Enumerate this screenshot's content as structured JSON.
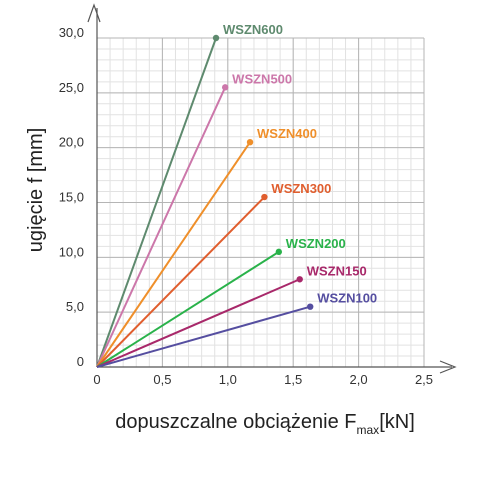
{
  "chart_data": {
    "type": "line",
    "xlabel": "dopuszczalne obciążenie F",
    "xlabel_sub": "max",
    "xlabel_unit": "[kN]",
    "ylabel": "ugięcie f [mm]",
    "xlim": [
      0,
      2.5
    ],
    "ylim": [
      0,
      30
    ],
    "x_ticks": [
      "0",
      "0,5",
      "1,0",
      "1,5",
      "2,0",
      "2,5"
    ],
    "y_ticks": [
      "0",
      "5,0",
      "10,0",
      "15,0",
      "20,0",
      "25,0",
      "30,0"
    ],
    "grid": true,
    "series": [
      {
        "name": "WSZN600",
        "color": "#5e8a6e",
        "points": [
          [
            0,
            0
          ],
          [
            0.91,
            30.0
          ]
        ]
      },
      {
        "name": "WSZN500",
        "color": "#cc77aa",
        "points": [
          [
            0,
            0
          ],
          [
            0.98,
            25.5
          ]
        ]
      },
      {
        "name": "WSZN400",
        "color": "#ef8f2a",
        "points": [
          [
            0,
            0
          ],
          [
            1.17,
            20.5
          ]
        ]
      },
      {
        "name": "WSZN300",
        "color": "#e05e2e",
        "points": [
          [
            0,
            0
          ],
          [
            1.28,
            15.5
          ]
        ]
      },
      {
        "name": "WSZN200",
        "color": "#29b24a",
        "points": [
          [
            0,
            0
          ],
          [
            1.39,
            10.5
          ]
        ]
      },
      {
        "name": "WSZN150",
        "color": "#a8286a",
        "points": [
          [
            0,
            0
          ],
          [
            1.55,
            8.0
          ]
        ]
      },
      {
        "name": "WSZN100",
        "color": "#554ea0",
        "points": [
          [
            0,
            0
          ],
          [
            1.63,
            5.5
          ]
        ]
      }
    ]
  }
}
